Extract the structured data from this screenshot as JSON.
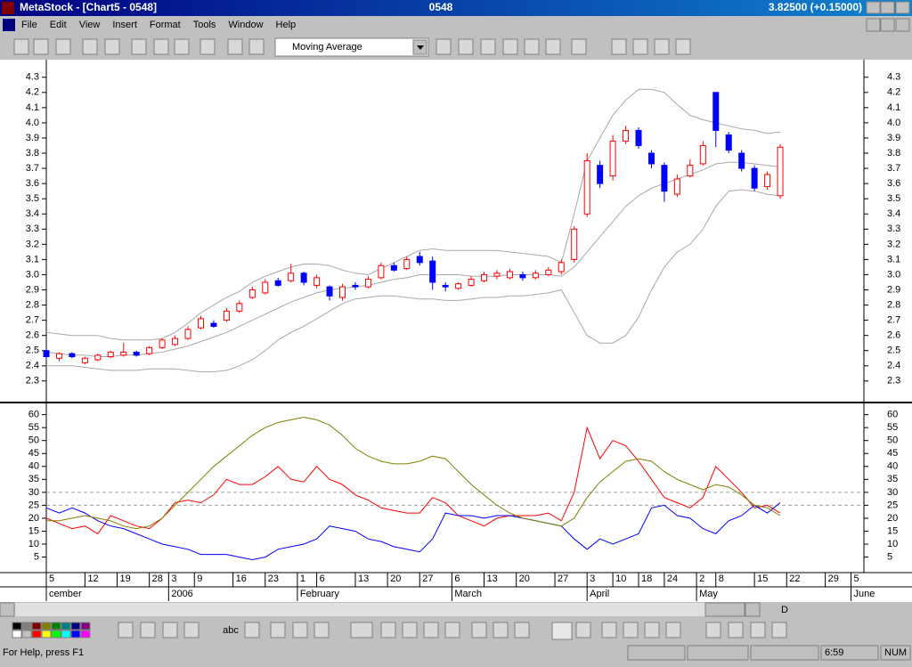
{
  "window": {
    "app_title": "MetaStock - [Chart5 - 0548]",
    "symbol": "0548",
    "quote": "3.82500 (+0.15000)"
  },
  "menu": [
    "File",
    "Edit",
    "View",
    "Insert",
    "Format",
    "Tools",
    "Window",
    "Help"
  ],
  "toolbar": {
    "indicator_select": "Moving Average"
  },
  "chart_toolbar": {
    "period": "D"
  },
  "drawing_toolbar": {
    "text_tool": "abc"
  },
  "status_bar": {
    "help": "For Help, press F1",
    "time": "6:59",
    "mode": "NUM"
  },
  "chart_data": [
    {
      "type": "candlestick",
      "xlim": [
        0,
        127
      ],
      "ylim": [
        2.17,
        4.41
      ],
      "yticks": [
        2.3,
        2.4,
        2.5,
        2.6,
        2.7,
        2.8,
        2.9,
        {
          "value": 3,
          "label": "3.0"
        },
        3.1,
        3.2,
        3.3,
        3.4,
        3.5,
        3.6,
        3.7,
        3.8,
        3.9,
        {
          "value": 4,
          "label": "4.0"
        },
        4.1,
        4.2,
        4.3
      ],
      "up_color": "#ff0000",
      "down_color": "#0000ff",
      "x": [
        0,
        2,
        4,
        6,
        8,
        10,
        12,
        14,
        16,
        18,
        20,
        22,
        24,
        26,
        28,
        30,
        32,
        34,
        36,
        38,
        40,
        42,
        44,
        46,
        48,
        50,
        52,
        54,
        56,
        58,
        60,
        62,
        64,
        66,
        68,
        70,
        72,
        74,
        76,
        78,
        80,
        82,
        84,
        86,
        88,
        90,
        92,
        94,
        96,
        98,
        100,
        102,
        104,
        106,
        108,
        110,
        112,
        114
      ],
      "open": [
        2.5,
        2.45,
        2.48,
        2.42,
        2.44,
        2.46,
        2.47,
        2.49,
        2.48,
        2.52,
        2.54,
        2.58,
        2.65,
        2.68,
        2.7,
        2.76,
        2.85,
        2.88,
        2.96,
        2.96,
        3.01,
        2.93,
        2.92,
        2.85,
        2.93,
        2.92,
        2.98,
        3.06,
        3.04,
        3.12,
        3.09,
        2.93,
        2.91,
        2.93,
        2.96,
        2.99,
        2.98,
        3.0,
        2.98,
        3.0,
        3.02,
        3.1,
        3.4,
        3.72,
        3.65,
        3.88,
        3.95,
        3.8,
        3.72,
        3.53,
        3.65,
        3.73,
        4.2,
        3.92,
        3.8,
        3.7,
        3.58,
        3.52
      ],
      "high": [
        2.51,
        2.49,
        2.49,
        2.46,
        2.48,
        2.5,
        2.55,
        2.5,
        2.53,
        2.58,
        2.6,
        2.66,
        2.73,
        2.7,
        2.78,
        2.83,
        2.92,
        2.97,
        2.98,
        3.07,
        3.02,
        3.0,
        2.93,
        2.94,
        2.95,
        2.99,
        3.08,
        3.08,
        3.12,
        3.15,
        3.12,
        2.95,
        2.95,
        2.99,
        3.02,
        3.03,
        3.04,
        3.02,
        3.03,
        3.05,
        3.1,
        3.32,
        3.8,
        3.75,
        3.92,
        3.98,
        3.97,
        3.82,
        3.74,
        3.66,
        3.76,
        3.88,
        4.2,
        3.94,
        3.82,
        3.72,
        3.68,
        3.86
      ],
      "low": [
        2.44,
        2.43,
        2.45,
        2.41,
        2.43,
        2.45,
        2.46,
        2.46,
        2.47,
        2.51,
        2.53,
        2.57,
        2.64,
        2.65,
        2.69,
        2.75,
        2.84,
        2.87,
        2.92,
        2.95,
        2.93,
        2.91,
        2.83,
        2.83,
        2.9,
        2.91,
        2.97,
        3.02,
        3.03,
        3.06,
        2.9,
        2.89,
        2.9,
        2.92,
        2.95,
        2.97,
        2.97,
        2.96,
        2.97,
        2.99,
        3.0,
        3.08,
        3.38,
        3.57,
        3.62,
        3.86,
        3.83,
        3.7,
        3.48,
        3.51,
        3.64,
        3.72,
        3.84,
        3.8,
        3.68,
        3.55,
        3.56,
        3.5
      ],
      "close": [
        2.46,
        2.48,
        2.46,
        2.45,
        2.47,
        2.49,
        2.49,
        2.47,
        2.52,
        2.57,
        2.58,
        2.64,
        2.71,
        2.66,
        2.76,
        2.81,
        2.9,
        2.95,
        2.93,
        3.01,
        2.95,
        2.98,
        2.86,
        2.92,
        2.92,
        2.97,
        3.06,
        3.03,
        3.1,
        3.08,
        2.95,
        2.92,
        2.94,
        2.97,
        3.0,
        3.01,
        3.02,
        2.98,
        3.01,
        3.03,
        3.08,
        3.3,
        3.75,
        3.6,
        3.88,
        3.95,
        3.85,
        3.73,
        3.55,
        3.63,
        3.72,
        3.85,
        3.95,
        3.82,
        3.7,
        3.57,
        3.66,
        3.84
      ],
      "bands": [
        {
          "color": "#a8a8a8",
          "values": [
            2.62,
            2.61,
            2.6,
            2.6,
            2.6,
            2.58,
            2.57,
            2.57,
            2.57,
            2.58,
            2.62,
            2.68,
            2.75,
            2.8,
            2.85,
            2.89,
            2.95,
            2.99,
            3.02,
            3.05,
            3.07,
            3.07,
            3.06,
            3.03,
            3.01,
            3.0,
            3.04,
            3.08,
            3.12,
            3.16,
            3.17,
            3.16,
            3.16,
            3.16,
            3.16,
            3.16,
            3.15,
            3.14,
            3.13,
            3.12,
            3.08,
            3.4,
            3.75,
            3.9,
            4.05,
            4.15,
            4.22,
            4.22,
            4.2,
            4.12,
            4.05,
            4.02,
            4.0,
            3.98,
            3.96,
            3.95,
            3.93,
            3.94
          ]
        },
        {
          "color": "#a8a8a8",
          "values": [
            2.49,
            2.48,
            2.47,
            2.47,
            2.46,
            2.46,
            2.47,
            2.47,
            2.48,
            2.49,
            2.51,
            2.53,
            2.56,
            2.59,
            2.62,
            2.66,
            2.7,
            2.74,
            2.78,
            2.82,
            2.85,
            2.88,
            2.9,
            2.91,
            2.92,
            2.93,
            2.95,
            2.97,
            2.98,
            3.0,
            3.0,
            3.0,
            3.0,
            2.99,
            2.99,
            2.99,
            3.0,
            3.0,
            3.0,
            3.0,
            2.99,
            3.05,
            3.15,
            3.25,
            3.35,
            3.45,
            3.52,
            3.57,
            3.6,
            3.63,
            3.66,
            3.69,
            3.73,
            3.74,
            3.74,
            3.73,
            3.72,
            3.71
          ]
        },
        {
          "color": "#a8a8a8",
          "values": [
            2.4,
            2.4,
            2.4,
            2.39,
            2.38,
            2.37,
            2.37,
            2.37,
            2.38,
            2.38,
            2.38,
            2.37,
            2.36,
            2.36,
            2.37,
            2.4,
            2.44,
            2.5,
            2.57,
            2.62,
            2.66,
            2.71,
            2.76,
            2.81,
            2.84,
            2.85,
            2.86,
            2.86,
            2.85,
            2.84,
            2.84,
            2.83,
            2.83,
            2.84,
            2.85,
            2.85,
            2.86,
            2.86,
            2.87,
            2.88,
            2.9,
            2.75,
            2.6,
            2.55,
            2.55,
            2.6,
            2.72,
            2.9,
            3.05,
            3.15,
            3.2,
            3.3,
            3.45,
            3.55,
            3.56,
            3.55,
            3.53,
            3.52
          ]
        }
      ]
    },
    {
      "type": "line",
      "xlim": [
        0,
        127
      ],
      "ylim": [
        -1,
        64
      ],
      "yticks": [
        5,
        10,
        15,
        20,
        25,
        30,
        35,
        40,
        45,
        50,
        55,
        60
      ],
      "hlines": [
        25,
        30
      ],
      "x": [
        0,
        2,
        4,
        6,
        8,
        10,
        12,
        14,
        16,
        18,
        20,
        22,
        24,
        26,
        28,
        30,
        32,
        34,
        36,
        38,
        40,
        42,
        44,
        46,
        48,
        50,
        52,
        54,
        56,
        58,
        60,
        62,
        64,
        66,
        68,
        70,
        72,
        74,
        76,
        78,
        80,
        82,
        84,
        86,
        88,
        90,
        92,
        94,
        96,
        98,
        100,
        102,
        104,
        106,
        108,
        110,
        112,
        114
      ],
      "series": [
        {
          "color": "#ff0000",
          "values": [
            20,
            18,
            16,
            17,
            14,
            21,
            19,
            17,
            16,
            20,
            26,
            27,
            26,
            29,
            35,
            33,
            33,
            36,
            40,
            35,
            34,
            40,
            35,
            33,
            29,
            27,
            24,
            23,
            22,
            22,
            28,
            26,
            21,
            19,
            17,
            20,
            21,
            21,
            21,
            22,
            19,
            30,
            55,
            43,
            50,
            48,
            42,
            35,
            28,
            26,
            24,
            28,
            40,
            35,
            30,
            24,
            25,
            22
          ]
        },
        {
          "color": "#0000ff",
          "values": [
            24,
            22,
            24,
            22,
            19,
            17,
            16,
            14,
            12,
            10,
            9,
            8,
            6,
            6,
            6,
            5,
            4,
            5,
            8,
            9,
            10,
            12,
            17,
            16,
            15,
            12,
            11,
            9,
            8,
            7,
            12,
            22,
            21,
            21,
            20,
            21,
            21,
            20,
            19,
            18,
            17,
            12,
            8,
            12,
            10,
            12,
            14,
            24,
            25,
            21,
            20,
            16,
            14,
            19,
            21,
            25,
            22,
            26
          ]
        },
        {
          "color": "#808000",
          "values": [
            19,
            19,
            20,
            21,
            20,
            19,
            17,
            16,
            17,
            20,
            25,
            30,
            35,
            40,
            44,
            48,
            52,
            55,
            57,
            58,
            59,
            58,
            56,
            52,
            47,
            44,
            42,
            41,
            41,
            42,
            44,
            43,
            38,
            33,
            29,
            25,
            22,
            20,
            19,
            18,
            17,
            20,
            28,
            34,
            38,
            42,
            43,
            42,
            38,
            35,
            33,
            31,
            33,
            32,
            29,
            25,
            24,
            21
          ]
        }
      ],
      "xticks": [
        {
          "value": 0,
          "label": "5"
        },
        {
          "value": 6,
          "label": "12"
        },
        {
          "value": 11,
          "label": "19"
        },
        {
          "value": 16,
          "label": "28"
        },
        {
          "value": 19,
          "label": "3"
        },
        {
          "value": 23,
          "label": "9"
        },
        {
          "value": 29,
          "label": "16"
        },
        {
          "value": 34,
          "label": "23"
        },
        {
          "value": 39,
          "label": "1"
        },
        {
          "value": 42,
          "label": "6"
        },
        {
          "value": 48,
          "label": "13"
        },
        {
          "value": 53,
          "label": "20"
        },
        {
          "value": 58,
          "label": "27"
        },
        {
          "value": 63,
          "label": "6"
        },
        {
          "value": 68,
          "label": "13"
        },
        {
          "value": 73,
          "label": "20"
        },
        {
          "value": 79,
          "label": "27"
        },
        {
          "value": 84,
          "label": "3"
        },
        {
          "value": 88,
          "label": "10"
        },
        {
          "value": 92,
          "label": "18"
        },
        {
          "value": 96,
          "label": "24"
        },
        {
          "value": 101,
          "label": "2"
        },
        {
          "value": 104,
          "label": "8"
        },
        {
          "value": 110,
          "label": "15"
        },
        {
          "value": 115,
          "label": "22"
        },
        {
          "value": 121,
          "label": "29"
        },
        {
          "value": 125,
          "label": "5"
        }
      ],
      "month_ticks": [
        {
          "value": 0,
          "label": "cember"
        },
        {
          "value": 19,
          "label": "2006"
        },
        {
          "value": 39,
          "label": "February"
        },
        {
          "value": 63,
          "label": "March"
        },
        {
          "value": 84,
          "label": "April"
        },
        {
          "value": 101,
          "label": "May"
        },
        {
          "value": 125,
          "label": "June"
        }
      ]
    }
  ]
}
